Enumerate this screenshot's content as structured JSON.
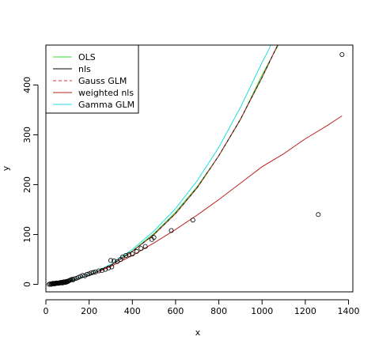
{
  "chart_data": {
    "type": "scatter",
    "title": "",
    "xlabel": "x",
    "ylabel": "y",
    "xlim": [
      0,
      1420
    ],
    "ylim": [
      -15,
      480
    ],
    "x_ticks": [
      0,
      200,
      400,
      600,
      800,
      1000,
      1200,
      1400
    ],
    "y_ticks": [
      0,
      100,
      200,
      300,
      400
    ],
    "grid": false,
    "legend_position": "top-left",
    "points": {
      "x": [
        15,
        20,
        25,
        28,
        32,
        35,
        38,
        42,
        45,
        48,
        52,
        55,
        58,
        62,
        65,
        68,
        72,
        75,
        78,
        82,
        85,
        88,
        92,
        95,
        98,
        102,
        105,
        110,
        115,
        120,
        125,
        130,
        140,
        150,
        160,
        170,
        180,
        190,
        200,
        210,
        220,
        230,
        245,
        260,
        275,
        290,
        300,
        305,
        315,
        330,
        345,
        355,
        370,
        385,
        400,
        420,
        440,
        460,
        490,
        500,
        580,
        680,
        1260,
        1370
      ],
      "y": [
        0,
        1,
        0,
        1,
        2,
        1,
        2,
        1,
        2,
        3,
        2,
        3,
        2,
        3,
        3,
        4,
        3,
        4,
        3,
        5,
        4,
        5,
        4,
        6,
        5,
        6,
        7,
        8,
        9,
        10,
        9,
        11,
        12,
        14,
        16,
        18,
        17,
        20,
        21,
        23,
        24,
        25,
        27,
        28,
        30,
        33,
        48,
        35,
        47,
        46,
        50,
        55,
        58,
        60,
        61,
        66,
        72,
        76,
        90,
        94,
        108,
        129,
        140,
        461
      ]
    },
    "series": [
      {
        "name": "OLS",
        "color": "#33dd33",
        "dash": "solid",
        "x": [
          20,
          100,
          200,
          300,
          400,
          500,
          600,
          700,
          800,
          900,
          1000,
          1050,
          1100
        ],
        "y": [
          0,
          5,
          18,
          38,
          67,
          102,
          145,
          196,
          258,
          330,
          420,
          460,
          500
        ]
      },
      {
        "name": "nls",
        "color": "#000000",
        "dash": "solid",
        "x": [
          20,
          100,
          200,
          300,
          400,
          500,
          600,
          700,
          800,
          900,
          1000,
          1050,
          1100
        ],
        "y": [
          0,
          5,
          18,
          38,
          66,
          100,
          142,
          194,
          258,
          331,
          415,
          460,
          505
        ]
      },
      {
        "name": "Gauss GLM",
        "color": "#dd3333",
        "dash": "dashed",
        "x": [
          20,
          100,
          200,
          300,
          400,
          500,
          600,
          700,
          800,
          900,
          1000,
          1050,
          1100
        ],
        "y": [
          0,
          5,
          18,
          38,
          66,
          100,
          142,
          194,
          258,
          331,
          415,
          460,
          505
        ]
      },
      {
        "name": "weighted nls",
        "color": "#bb2222",
        "dash": "solid",
        "x": [
          20,
          100,
          200,
          300,
          400,
          500,
          600,
          700,
          800,
          900,
          1000,
          1100,
          1200,
          1300,
          1370
        ],
        "y": [
          0,
          5,
          18,
          36,
          58,
          83,
          110,
          139,
          170,
          203,
          236,
          262,
          292,
          318,
          338
        ]
      },
      {
        "name": "Gamma GLM",
        "color": "#22dddd",
        "dash": "solid",
        "x": [
          20,
          100,
          200,
          300,
          400,
          500,
          600,
          700,
          800,
          900,
          1000,
          1030,
          1060
        ],
        "y": [
          0,
          5,
          19,
          40,
          70,
          107,
          152,
          208,
          275,
          355,
          445,
          470,
          500
        ]
      }
    ]
  }
}
